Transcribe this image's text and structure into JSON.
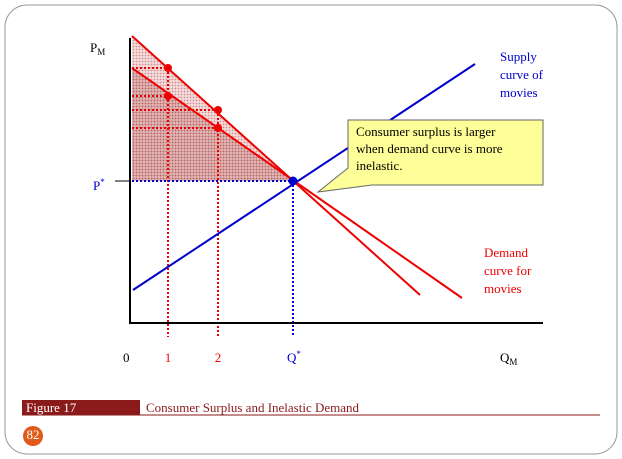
{
  "diagram": {
    "y_label": "P",
    "y_label_sub": "M",
    "p_star": "P",
    "p_star_sup": "*",
    "origin": "0",
    "x_ticks": [
      "1",
      "2"
    ],
    "q_star": "Q",
    "q_star_sup": "*",
    "x_label": "Q",
    "x_label_sub": "M",
    "supply_label": [
      "Supply",
      "curve of",
      "movies"
    ],
    "demand_label": [
      "Demand",
      "curve for",
      "movies"
    ],
    "callout": [
      "Consumer surplus is larger",
      "when demand curve is more",
      "inelastic."
    ]
  },
  "footer": {
    "figure": "Figure 17",
    "caption": "Consumer Surplus and Inelastic Demand",
    "slide_number": "82"
  }
}
